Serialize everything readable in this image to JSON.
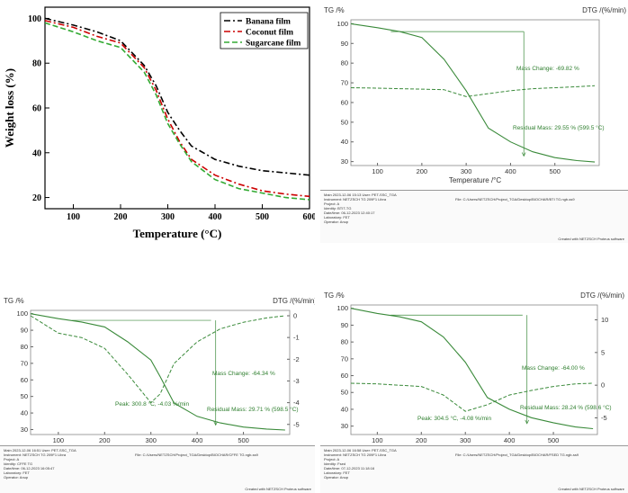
{
  "chart_data": [
    {
      "type": "line",
      "title": "",
      "xlabel": "Temperature (°C)",
      "ylabel": "Weight loss (%)",
      "xlim": [
        40,
        600
      ],
      "ylim": [
        15,
        105
      ],
      "xticks": [
        "100",
        "200",
        "300",
        "400",
        "500",
        "600"
      ],
      "yticks": [
        "20",
        "40",
        "60",
        "80",
        "100"
      ],
      "legend_position": "top-right",
      "x": [
        40,
        100,
        150,
        200,
        250,
        275,
        300,
        325,
        350,
        400,
        450,
        500,
        550,
        600
      ],
      "series": [
        {
          "name": "Banana film",
          "color": "#000000",
          "dash": "dash-dot",
          "values": [
            100,
            97,
            94,
            90,
            79,
            70,
            58,
            50,
            43,
            37,
            34,
            32,
            31,
            30
          ]
        },
        {
          "name": "Coconut film",
          "color": "#cc0000",
          "dash": "dash-dot",
          "values": [
            99,
            96,
            92,
            89,
            78,
            68,
            55,
            45,
            37,
            30,
            26,
            23,
            21.5,
            20.5
          ]
        },
        {
          "name": "Sugarcane film",
          "color": "#33aa33",
          "dash": "dashed",
          "values": [
            98,
            94,
            90,
            87,
            76,
            66,
            53,
            44,
            36,
            28,
            24,
            22,
            20,
            19
          ]
        }
      ]
    },
    {
      "type": "line",
      "ylabel_left": "TG /%",
      "ylabel_right": "DTG /(%/min)",
      "xlabel": "Temperature /°C",
      "xlim": [
        40,
        600
      ],
      "ylim": [
        28,
        102
      ],
      "xticks": [
        "100",
        "200",
        "300",
        "400",
        "500"
      ],
      "yticks": [
        "30",
        "40",
        "50",
        "60",
        "70",
        "80",
        "90",
        "100"
      ],
      "x": [
        40,
        100,
        150,
        200,
        250,
        300,
        350,
        400,
        450,
        500,
        550,
        590
      ],
      "tg": [
        100,
        98,
        96,
        93,
        82,
        66,
        47,
        40,
        35,
        32,
        30.5,
        29.8
      ],
      "dtg": [
        67.5,
        67.3,
        67,
        66.8,
        66.5,
        63,
        64.5,
        66,
        67,
        67.5,
        68,
        68.5
      ],
      "annotations": {
        "mass_change": "Mass Change: -69.82 %",
        "residual_mass": "Residual Mass: 29.55 % (599.5 °C)"
      }
    },
    {
      "type": "line",
      "ylabel_left": "TG /%",
      "ylabel_right": "DTG /(%/min)",
      "xlabel": "Temperature /°C",
      "xlim": [
        40,
        600
      ],
      "ylim": [
        27,
        102
      ],
      "xticks": [
        "100",
        "200",
        "300",
        "400",
        "500"
      ],
      "yticks": [
        "30",
        "40",
        "50",
        "60",
        "70",
        "80",
        "90",
        "100"
      ],
      "y2ticks": [
        "0",
        "-1",
        "-2",
        "-3",
        "-4",
        "-5"
      ],
      "x": [
        40,
        100,
        150,
        200,
        250,
        300,
        320,
        350,
        400,
        450,
        500,
        550,
        590
      ],
      "tg": [
        100,
        97,
        95,
        92,
        83,
        72,
        62,
        46,
        38,
        34,
        31.5,
        30.3,
        29.7
      ],
      "dtg": [
        0,
        -0.8,
        -1,
        -1.5,
        -2.7,
        -4.0,
        -3.6,
        -2.2,
        -1.2,
        -0.6,
        -0.3,
        -0.1,
        0
      ],
      "annotations": {
        "mass_change": "Mass Change: -64.34 %",
        "residual_mass": "Residual Mass: 29.71 % (598.5 °C)",
        "peak": "Peak: 300.8 °C, -4.03 %/min"
      }
    },
    {
      "type": "line",
      "ylabel_left": "TG /%",
      "ylabel_right": "DTG /(%/min)",
      "xlabel": "Temperature /°C",
      "xlim": [
        40,
        600
      ],
      "ylim": [
        25,
        102
      ],
      "xticks": [
        "100",
        "200",
        "300",
        "400",
        "500"
      ],
      "yticks": [
        "30",
        "40",
        "50",
        "60",
        "70",
        "80",
        "90",
        "100"
      ],
      "y2ticks": [
        "10",
        "5",
        "0",
        "-5"
      ],
      "x": [
        40,
        100,
        150,
        200,
        250,
        300,
        350,
        400,
        450,
        500,
        550,
        590
      ],
      "tg": [
        100,
        97,
        95,
        92,
        83,
        68,
        47,
        40,
        35,
        32,
        29.5,
        28.5
      ],
      "dtg": [
        0.3,
        0.2,
        0,
        -0.2,
        -1.5,
        -4.0,
        -3.0,
        -1.5,
        -0.8,
        -0.2,
        0.2,
        0.3
      ],
      "annotations": {
        "mass_change": "Mass Change: -64.00 %",
        "residual_mass": "Residual Mass: 28.24 % (598.6 °C)",
        "peak": "Peak: 304.5 °C, -4.08 %/min"
      }
    }
  ],
  "footers": {
    "p2": {
      "date": "Main   2023-12-06 15:13   User: PET-SSC_TGA",
      "instrument": "Instrument:  NETZSCH TG 209F1 Libra",
      "project": "Project:  A",
      "identity": "Identity:  BTIT-TG",
      "datetime": "Date/time:  06-12-2023 12:40:17",
      "laboratory": "Laboratory:  FET",
      "operator": "Operator:  Anup",
      "file_label": "File:  C:/Users/NETZSCH/Project_TGA/Desktop/BIOCHAR/BTI TG.ngb-ss9",
      "created": "Created with NETZSCH Proteus software"
    },
    "p3": {
      "date": "Main   2023-12-06 16:51   User: PET-SSC_TGA",
      "instrument": "Instrument:  NETZSCH TG 209F1 Libra",
      "project": "Project:  A",
      "identity": "Identity:  CFFE TG",
      "datetime": "Date/time:  06-12-2023 16:05:47",
      "laboratory": "Laboratory:  FET",
      "operator": "Operator:  Anup",
      "file_label": "File:  C:/Users/NETZSCH/Project_TGA/Desktop/BIOCHAR/CFFE TG.ngb-ss9",
      "created": "Created with NETZSCH Proteus software"
    },
    "p4": {
      "date": "Main   2023-12-06 16:58   User: PET-SSC_TGA",
      "instrument": "Instrument:  NETZSCH TG 209F1 Libra",
      "project": "Project:  A",
      "identity": "Identity:  Fsed",
      "datetime": "Date/time:  07-12-2023 11:18:16",
      "laboratory": "Laboratory:  FET",
      "operator": "Operator:  Anup",
      "file_label": "File:  C:/Users/NETZSCH/Project_TGA/Desktop/BIOCHAR/FSED TG.ngb-ss9",
      "created": "Created with NETZSCH Proteus software"
    }
  },
  "colors": {
    "tg_green": "#3a8a3a",
    "dtg_green": "#3a8a3a",
    "annotation_green": "#2f7f2f"
  }
}
